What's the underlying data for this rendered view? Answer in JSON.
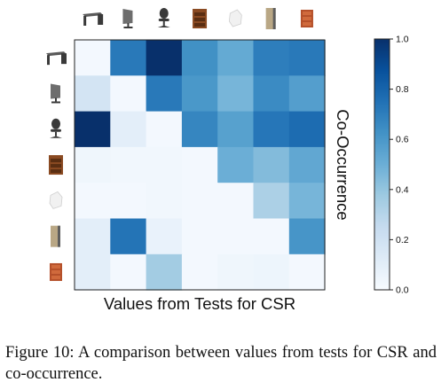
{
  "chart_data": {
    "type": "heatmap",
    "title": "",
    "xlabel": "Values from Tests for CSR",
    "ylabel": "Co-Occurrence",
    "row_icons": [
      "desk-icon",
      "monitor-icon",
      "office-chair-icon",
      "bookshelf-icon",
      "lamp-icon",
      "tall-cabinet-icon",
      "drawer-cabinet-icon"
    ],
    "col_icons": [
      "desk-icon",
      "monitor-icon",
      "office-chair-icon",
      "bookshelf-icon",
      "lamp-icon",
      "tall-cabinet-icon",
      "drawer-cabinet-icon"
    ],
    "values": [
      [
        0.02,
        0.72,
        1.0,
        0.63,
        0.52,
        0.7,
        0.72
      ],
      [
        0.18,
        0.02,
        0.72,
        0.6,
        0.47,
        0.65,
        0.57
      ],
      [
        1.0,
        0.1,
        0.02,
        0.67,
        0.56,
        0.73,
        0.77
      ],
      [
        0.04,
        0.03,
        0.03,
        0.02,
        0.5,
        0.44,
        0.53
      ],
      [
        0.02,
        0.02,
        0.03,
        0.02,
        0.02,
        0.33,
        0.47
      ],
      [
        0.1,
        0.74,
        0.07,
        0.02,
        0.02,
        0.02,
        0.61
      ],
      [
        0.1,
        0.02,
        0.36,
        0.02,
        0.04,
        0.05,
        0.02
      ]
    ],
    "colorbar": {
      "min": 0.0,
      "max": 1.0,
      "ticks": [
        "0.0",
        "0.2",
        "0.4",
        "0.6",
        "0.8",
        "1.0"
      ],
      "colormap": "Blues"
    }
  },
  "caption": "Figure 10: A comparison between values from tests for CSR and co-occurrence."
}
